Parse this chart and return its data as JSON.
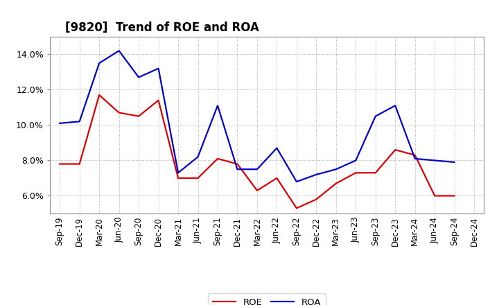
{
  "title": "[9820]  Trend of ROE and ROA",
  "x_labels": [
    "Sep-19",
    "Dec-19",
    "Mar-20",
    "Jun-20",
    "Sep-20",
    "Dec-20",
    "Mar-21",
    "Jun-21",
    "Sep-21",
    "Dec-21",
    "Mar-22",
    "Jun-22",
    "Sep-22",
    "Dec-22",
    "Mar-23",
    "Jun-23",
    "Sep-23",
    "Dec-23",
    "Mar-24",
    "Jun-24",
    "Sep-24",
    "Dec-24"
  ],
  "ROE": [
    7.8,
    7.8,
    11.7,
    10.7,
    10.5,
    11.4,
    7.0,
    7.0,
    8.1,
    7.8,
    6.3,
    7.0,
    5.3,
    5.8,
    6.7,
    7.3,
    7.3,
    8.6,
    8.3,
    6.0,
    6.0,
    null
  ],
  "ROA": [
    10.1,
    10.2,
    13.5,
    14.2,
    12.7,
    13.2,
    7.3,
    8.2,
    11.1,
    7.5,
    7.5,
    8.7,
    6.8,
    7.2,
    7.5,
    8.0,
    10.5,
    11.1,
    8.1,
    8.0,
    7.9,
    null
  ],
  "ROE_color": "#dd0000",
  "ROA_color": "#0000cc",
  "background_color": "#ffffff",
  "grid_color": "#999999",
  "ylim_min": 5.0,
  "ylim_max": 15.0,
  "yticks": [
    6.0,
    8.0,
    10.0,
    12.0,
    14.0
  ],
  "line_width": 1.6,
  "title_fontsize": 12,
  "tick_fontsize": 8.5
}
